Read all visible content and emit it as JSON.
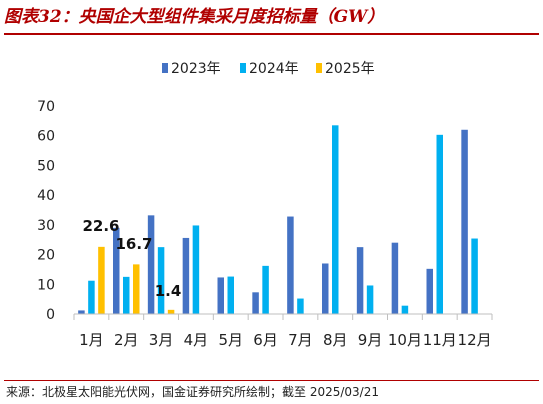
{
  "title": "图表32：央国企大型组件集采月度招标量（GW）",
  "source": "来源：北极星太阳能光伏网，国金证券研究所绘制；截至 2025/03/21",
  "colors": {
    "title": "#b00000",
    "series_2023": "#4472c4",
    "series_2024": "#00b0f0",
    "series_2025": "#ffc000"
  },
  "chart_data": {
    "type": "bar",
    "categories": [
      "1月",
      "2月",
      "3月",
      "4月",
      "5月",
      "6月",
      "7月",
      "8月",
      "9月",
      "10月",
      "11月",
      "12月"
    ],
    "series": [
      {
        "name": "2023年",
        "values": [
          1.2,
          29.0,
          33.2,
          25.6,
          12.3,
          7.3,
          32.8,
          17.0,
          22.5,
          24.0,
          15.2,
          62.0
        ]
      },
      {
        "name": "2024年",
        "values": [
          11.2,
          12.5,
          22.5,
          29.8,
          12.6,
          16.2,
          5.2,
          63.5,
          9.6,
          2.8,
          60.3,
          25.4
        ]
      },
      {
        "name": "2025年",
        "values": [
          22.6,
          16.7,
          1.4,
          null,
          null,
          null,
          null,
          null,
          null,
          null,
          null,
          null
        ]
      }
    ],
    "data_labels": [
      {
        "series": 2,
        "index": 0,
        "text": "22.6"
      },
      {
        "series": 2,
        "index": 1,
        "text": "16.7"
      },
      {
        "series": 2,
        "index": 2,
        "text": "1.4"
      }
    ],
    "ylim": [
      0,
      70
    ],
    "yticks": [
      0,
      10,
      20,
      30,
      40,
      50,
      60,
      70
    ],
    "grid": false,
    "legend_position": "top"
  }
}
